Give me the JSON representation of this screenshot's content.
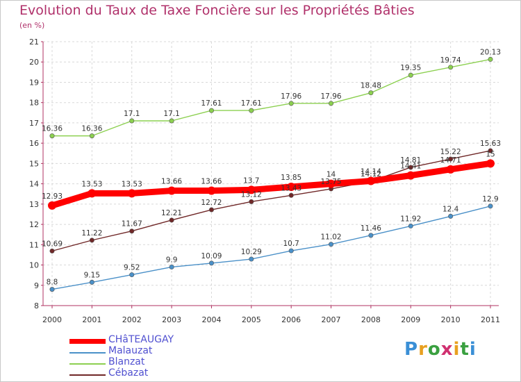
{
  "title": "Evolution du Taux de Taxe Foncière sur les Propriétés Bâties",
  "subtitle": "(en %)",
  "logo_text": "Proxiti",
  "chart_data": {
    "type": "line",
    "title": "Evolution du Taux de Taxe Foncière sur les Propriétés Bâties",
    "ylabel": "(en %)",
    "xlabel": "",
    "x": [
      "2000",
      "2001",
      "2002",
      "2003",
      "2004",
      "2005",
      "2006",
      "2007",
      "2008",
      "2009",
      "2010",
      "2011"
    ],
    "ylim": [
      8,
      21
    ],
    "yticks": [
      "8",
      "9",
      "10",
      "11",
      "12",
      "13",
      "14",
      "15",
      "16",
      "17",
      "18",
      "19",
      "20",
      "21"
    ],
    "grid": true,
    "legend": "bottom-left",
    "series": [
      {
        "name": "CHâTEAUGAY",
        "color": "#ff0000",
        "values": [
          12.93,
          13.53,
          13.53,
          13.66,
          13.66,
          13.7,
          13.85,
          14,
          14.14,
          14.41,
          14.71,
          15
        ],
        "labels": [
          "12.93",
          "13.53",
          "13.53",
          "13.66",
          "13.66",
          "13.7",
          "13.85",
          "14",
          "14.14",
          "14.41",
          "14.71",
          "15"
        ]
      },
      {
        "name": "Malauzat",
        "color": "#4a90c8",
        "values": [
          8.8,
          9.15,
          9.52,
          9.9,
          10.09,
          10.29,
          10.7,
          11.02,
          11.46,
          11.92,
          12.4,
          12.9
        ],
        "labels": [
          "8.8",
          "9.15",
          "9.52",
          "9.9",
          "10.09",
          "10.29",
          "10.7",
          "11.02",
          "11.46",
          "11.92",
          "12.4",
          "12.9"
        ]
      },
      {
        "name": "Blanzat",
        "color": "#8cd050",
        "values": [
          16.36,
          16.36,
          17.1,
          17.1,
          17.61,
          17.61,
          17.96,
          17.96,
          18.48,
          19.35,
          19.74,
          20.13
        ],
        "labels": [
          "16.36",
          "16.36",
          "17.1",
          "17.1",
          "17.61",
          "17.61",
          "17.96",
          "17.96",
          "18.48",
          "19.35",
          "19.74",
          "20.13"
        ]
      },
      {
        "name": "Cébazat",
        "color": "#702828",
        "values": [
          10.69,
          11.22,
          11.67,
          12.21,
          12.72,
          13.12,
          13.43,
          13.75,
          14.12,
          14.81,
          15.22,
          15.63
        ],
        "labels": [
          "10.69",
          "11.22",
          "11.67",
          "12.21",
          "12.72",
          "13.12",
          "13.43",
          "13.75",
          "14.12",
          "14.81",
          "15.22",
          "15.63"
        ]
      }
    ]
  }
}
